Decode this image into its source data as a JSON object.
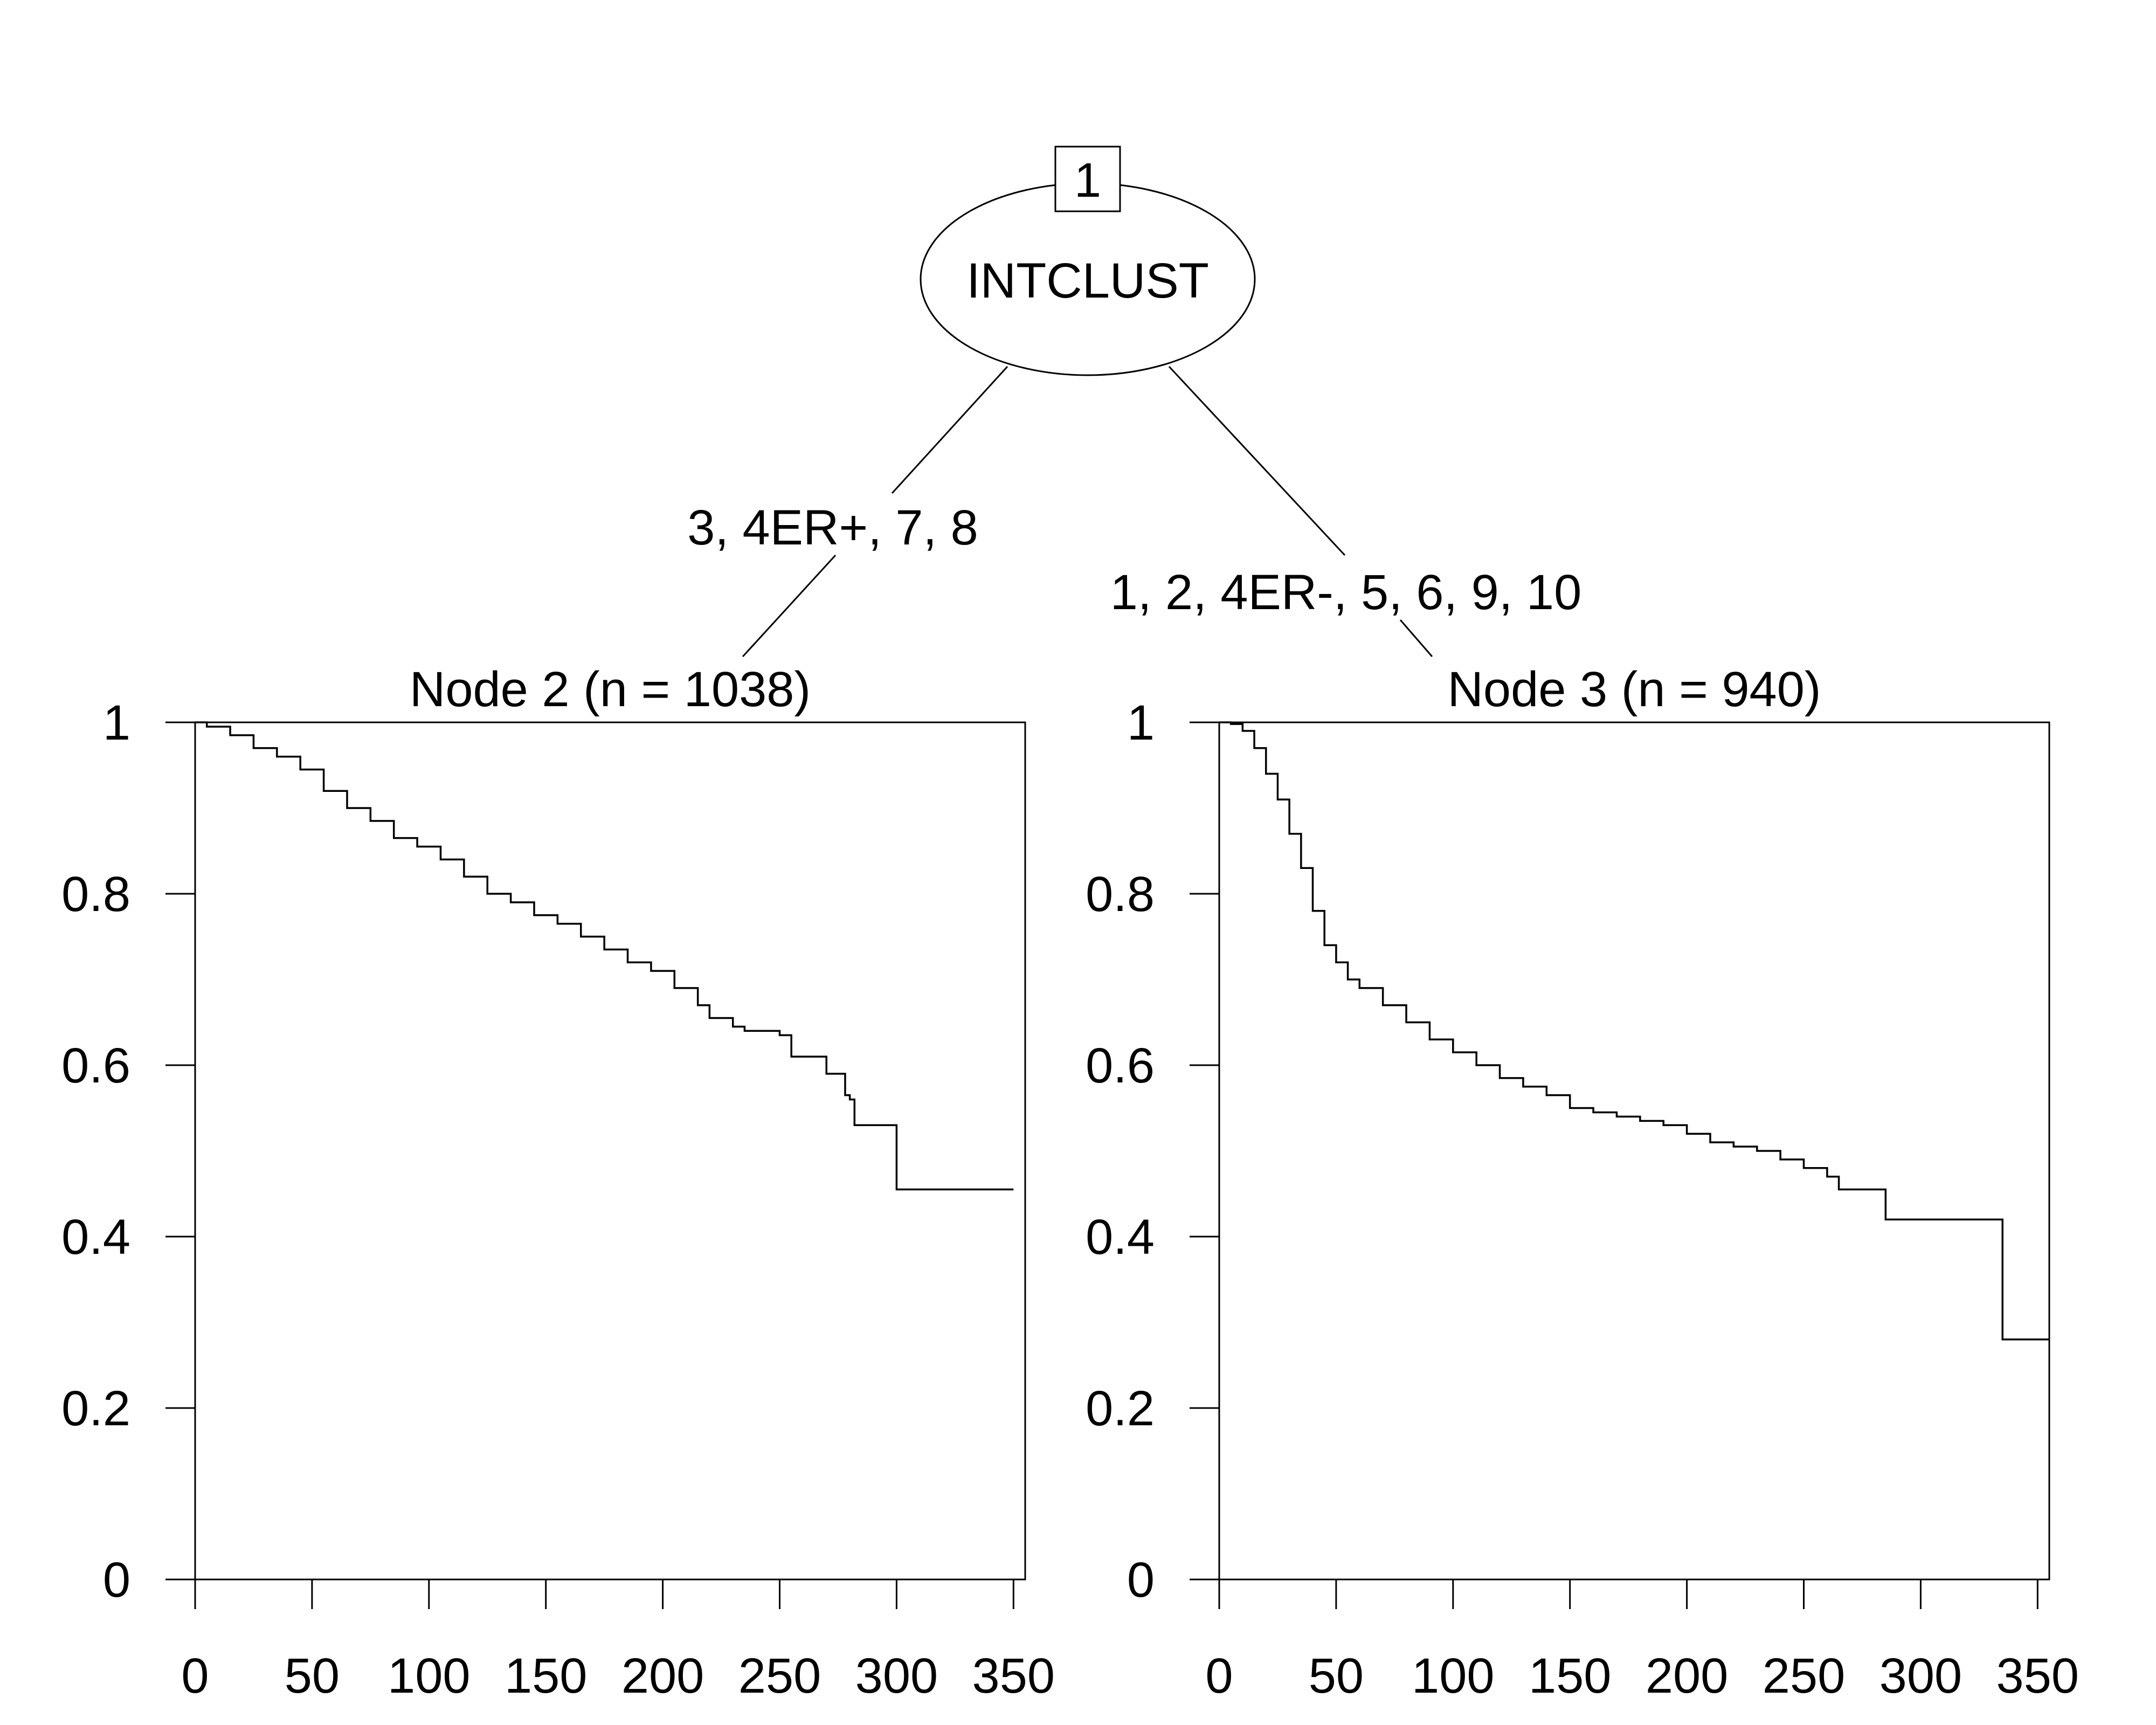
{
  "tree": {
    "root": {
      "id": "1",
      "variable": "INTCLUST"
    },
    "left_edge_label": "3, 4ER+, 7, 8",
    "right_edge_label": "1, 2, 4ER-, 5, 6, 9, 10"
  },
  "chart_data": [
    {
      "type": "line",
      "title": "Node 2 (n = 1038)",
      "xlim": [
        0,
        355
      ],
      "ylim": [
        0,
        1
      ],
      "x_ticks": [
        "0",
        "50",
        "100",
        "150",
        "200",
        "250",
        "300",
        "350"
      ],
      "y_ticks": [
        "0",
        "0.2",
        "0.4",
        "0.6",
        "0.8",
        "1"
      ],
      "step": true,
      "series": [
        {
          "x": [
            0,
            5,
            15,
            25,
            35,
            45,
            55,
            65,
            75,
            85,
            95,
            105,
            115,
            125,
            135,
            145,
            155,
            165,
            175,
            185,
            195,
            205,
            215,
            220,
            230,
            235,
            250,
            255,
            270,
            278,
            280,
            282,
            300,
            350
          ],
          "y": [
            1.0,
            0.995,
            0.985,
            0.97,
            0.96,
            0.945,
            0.92,
            0.9,
            0.885,
            0.865,
            0.855,
            0.84,
            0.82,
            0.8,
            0.79,
            0.775,
            0.765,
            0.75,
            0.735,
            0.72,
            0.71,
            0.69,
            0.67,
            0.655,
            0.645,
            0.64,
            0.635,
            0.61,
            0.59,
            0.565,
            0.56,
            0.53,
            0.455,
            0.455
          ]
        }
      ]
    },
    {
      "type": "line",
      "title": "Node 3 (n = 940)",
      "xlim": [
        0,
        355
      ],
      "ylim": [
        0,
        1
      ],
      "x_ticks": [
        "0",
        "50",
        "100",
        "150",
        "200",
        "250",
        "300",
        "350"
      ],
      "y_ticks": [
        "0",
        "0.2",
        "0.4",
        "0.6",
        "0.8",
        "1"
      ],
      "step": true,
      "series": [
        {
          "x": [
            0,
            5,
            10,
            15,
            20,
            25,
            30,
            35,
            40,
            45,
            50,
            55,
            60,
            70,
            80,
            90,
            100,
            110,
            120,
            130,
            140,
            150,
            160,
            170,
            180,
            190,
            200,
            210,
            220,
            230,
            240,
            250,
            260,
            265,
            285,
            335,
            355
          ],
          "y": [
            1.0,
            0.998,
            0.99,
            0.97,
            0.94,
            0.91,
            0.87,
            0.83,
            0.78,
            0.74,
            0.72,
            0.7,
            0.69,
            0.67,
            0.65,
            0.63,
            0.615,
            0.6,
            0.585,
            0.575,
            0.565,
            0.55,
            0.545,
            0.54,
            0.535,
            0.53,
            0.52,
            0.51,
            0.505,
            0.5,
            0.49,
            0.48,
            0.47,
            0.455,
            0.42,
            0.28,
            0.28
          ]
        }
      ]
    }
  ]
}
